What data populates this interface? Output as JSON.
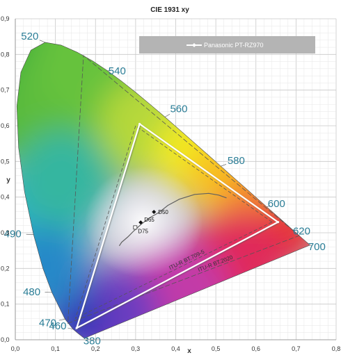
{
  "chart_data": {
    "type": "scatter",
    "title": "CIE 1931 xy",
    "xlabel": "x",
    "ylabel": "y",
    "xlim": [
      0,
      0.8
    ],
    "ylim": [
      0,
      0.9
    ],
    "x_ticks": [
      "0,0",
      "0,1",
      "0,2",
      "0,3",
      "0,4",
      "0,5",
      "0,6",
      "0,7",
      "0,8"
    ],
    "y_ticks": [
      "0,0",
      "0,1",
      "0,2",
      "0,3",
      "0,4",
      "0,5",
      "0,6",
      "0,7",
      "0,8",
      "0,9"
    ],
    "grid": true,
    "legend_position": "top-right",
    "spectral_locus": [
      [
        0.1741,
        0.005
      ],
      [
        0.1738,
        0.005
      ],
      [
        0.1733,
        0.0048
      ],
      [
        0.1726,
        0.0048
      ],
      [
        0.1714,
        0.0051
      ],
      [
        0.1689,
        0.0069
      ],
      [
        0.1644,
        0.0109
      ],
      [
        0.1566,
        0.0177
      ],
      [
        0.144,
        0.0297
      ],
      [
        0.1241,
        0.0578
      ],
      [
        0.0913,
        0.1327
      ],
      [
        0.0687,
        0.2007
      ],
      [
        0.0454,
        0.295
      ],
      [
        0.0235,
        0.4127
      ],
      [
        0.0082,
        0.5384
      ],
      [
        0.0039,
        0.6548
      ],
      [
        0.0139,
        0.7502
      ],
      [
        0.0389,
        0.812
      ],
      [
        0.0743,
        0.8338
      ],
      [
        0.1142,
        0.8262
      ],
      [
        0.1547,
        0.8059
      ],
      [
        0.1929,
        0.7816
      ],
      [
        0.2296,
        0.7543
      ],
      [
        0.2658,
        0.7243
      ],
      [
        0.3016,
        0.6923
      ],
      [
        0.3373,
        0.6589
      ],
      [
        0.3731,
        0.6245
      ],
      [
        0.4087,
        0.5896
      ],
      [
        0.4441,
        0.5547
      ],
      [
        0.4788,
        0.5202
      ],
      [
        0.5125,
        0.4866
      ],
      [
        0.5448,
        0.4544
      ],
      [
        0.5752,
        0.4242
      ],
      [
        0.6029,
        0.3965
      ],
      [
        0.627,
        0.3725
      ],
      [
        0.6482,
        0.3514
      ],
      [
        0.6658,
        0.334
      ],
      [
        0.6801,
        0.3197
      ],
      [
        0.6915,
        0.3083
      ],
      [
        0.7006,
        0.2993
      ],
      [
        0.7079,
        0.292
      ],
      [
        0.714,
        0.2859
      ],
      [
        0.719,
        0.2809
      ],
      [
        0.723,
        0.277
      ],
      [
        0.726,
        0.274
      ],
      [
        0.7283,
        0.2717
      ],
      [
        0.73,
        0.27
      ],
      [
        0.7347,
        0.2653
      ]
    ],
    "wavelength_labels": [
      {
        "label": "380",
        "x": 0.1741,
        "y": 0.005
      },
      {
        "label": "460",
        "x": 0.144,
        "y": 0.0297
      },
      {
        "label": "470",
        "x": 0.1241,
        "y": 0.0578
      },
      {
        "label": "480",
        "x": 0.0913,
        "y": 0.1327
      },
      {
        "label": "490",
        "x": 0.0454,
        "y": 0.295
      },
      {
        "label": "520",
        "x": 0.0743,
        "y": 0.8338
      },
      {
        "label": "540",
        "x": 0.2296,
        "y": 0.7543
      },
      {
        "label": "560",
        "x": 0.3731,
        "y": 0.6245
      },
      {
        "label": "580",
        "x": 0.5125,
        "y": 0.4866
      },
      {
        "label": "600",
        "x": 0.627,
        "y": 0.3725
      },
      {
        "label": "620",
        "x": 0.6915,
        "y": 0.3083
      },
      {
        "label": "700",
        "x": 0.7347,
        "y": 0.2653
      }
    ],
    "planckian_locus": [
      [
        0.2593,
        0.2634
      ],
      [
        0.2652,
        0.2733
      ],
      [
        0.2806,
        0.2883
      ],
      [
        0.2952,
        0.3048
      ],
      [
        0.3135,
        0.3236
      ],
      [
        0.3333,
        0.3409
      ],
      [
        0.3587,
        0.3573
      ],
      [
        0.3804,
        0.3767
      ],
      [
        0.4091,
        0.3941
      ],
      [
        0.4473,
        0.4076
      ],
      [
        0.4825,
        0.4104
      ],
      [
        0.5072,
        0.4055
      ],
      [
        0.5267,
        0.3977
      ]
    ],
    "white_points": [
      {
        "name": "D50",
        "x": 0.3457,
        "y": 0.3585
      },
      {
        "name": "D65",
        "x": 0.3127,
        "y": 0.329
      },
      {
        "name": "D75",
        "x": 0.299,
        "y": 0.3149
      }
    ],
    "gamuts": [
      {
        "name": "ITU-R BT.709-5",
        "points": [
          [
            0.64,
            0.33
          ],
          [
            0.3,
            0.6
          ],
          [
            0.15,
            0.06
          ]
        ],
        "style": "dashed",
        "color": "#555555"
      },
      {
        "name": "ITU-R BT.2020",
        "points": [
          [
            0.708,
            0.292
          ],
          [
            0.17,
            0.797
          ],
          [
            0.131,
            0.046
          ]
        ],
        "style": "dashed",
        "color": "#555555"
      }
    ],
    "series": [
      {
        "name": "Panasonic PT-RZ970",
        "points": [
          [
            0.655,
            0.33
          ],
          [
            0.31,
            0.605
          ],
          [
            0.153,
            0.033
          ]
        ],
        "color": "#ffffff"
      }
    ]
  }
}
